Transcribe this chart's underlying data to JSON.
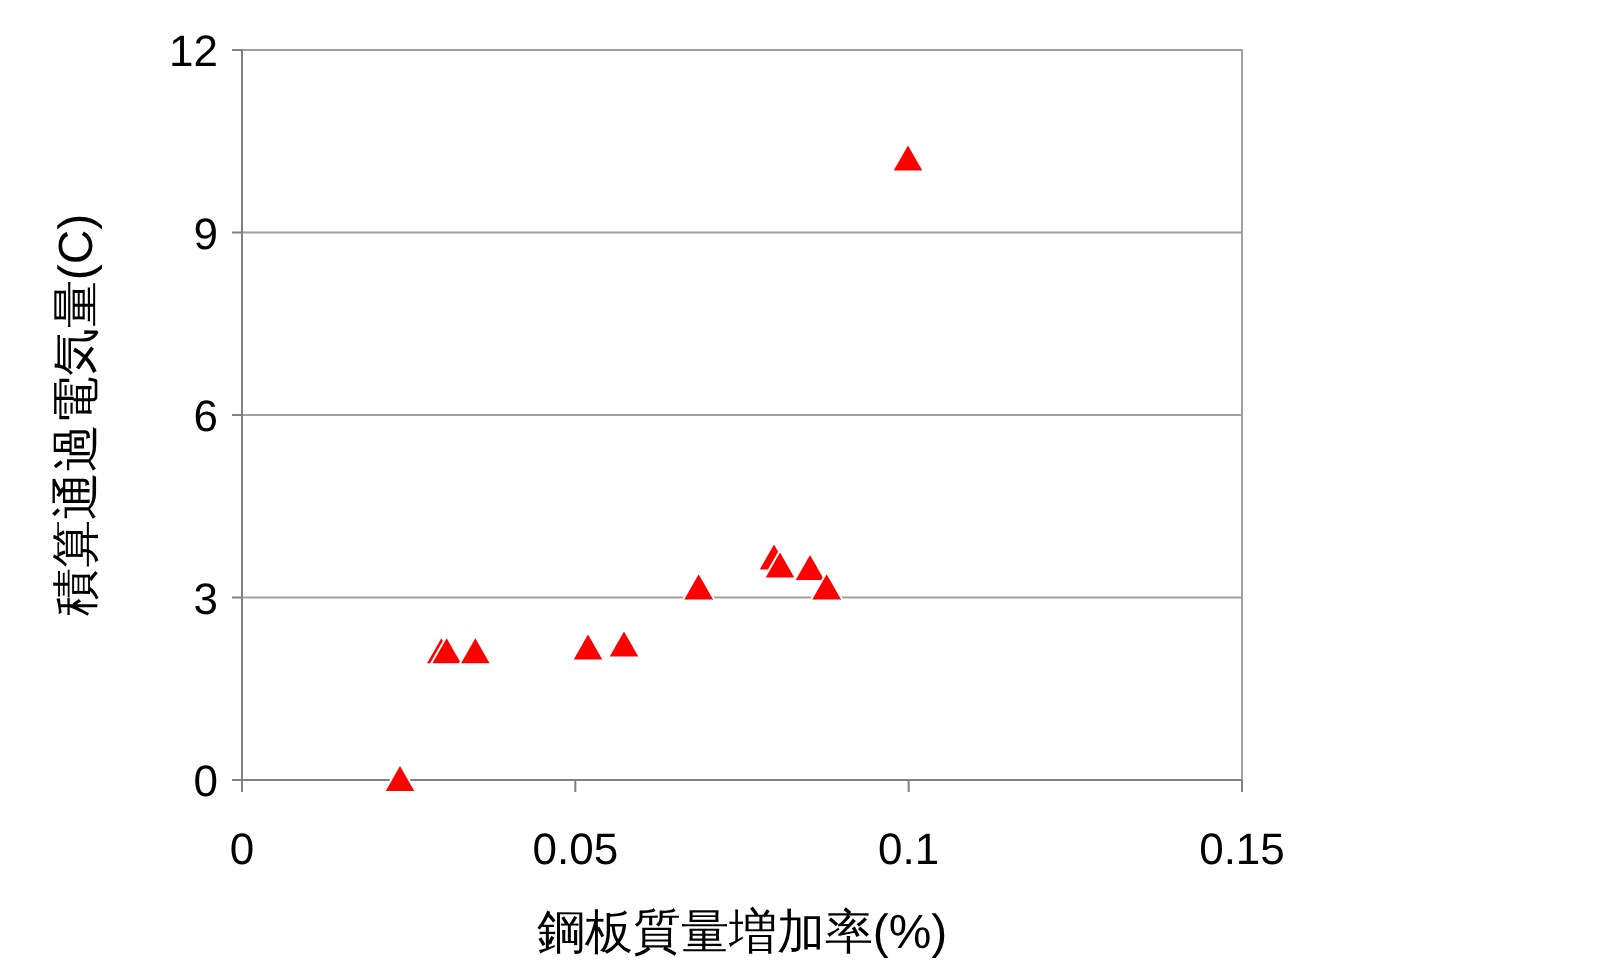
{
  "chart_data": {
    "type": "scatter",
    "xlabel": "鋼板質量増加率(%)",
    "ylabel": "積算通過電気量(C)",
    "x": [
      0.0237,
      0.0299,
      0.0307,
      0.035,
      0.0519,
      0.0573,
      0.0685,
      0.0798,
      0.0807,
      0.0852,
      0.0877,
      0.0999
    ],
    "series": [
      {
        "color": "#ff0000",
        "values": [
          0,
          2.1,
          2.1,
          2.1,
          2.16,
          2.21,
          3.15,
          3.64,
          3.51,
          3.47,
          3.15,
          10.2
        ]
      }
    ],
    "marker": "triangle",
    "xlim": [
      0,
      0.15
    ],
    "xticks": [
      0,
      0.05,
      0.1,
      0.15
    ],
    "ylim": [
      0,
      12
    ],
    "yticks": [
      0,
      3,
      6,
      9,
      12
    ],
    "grid": "y"
  }
}
